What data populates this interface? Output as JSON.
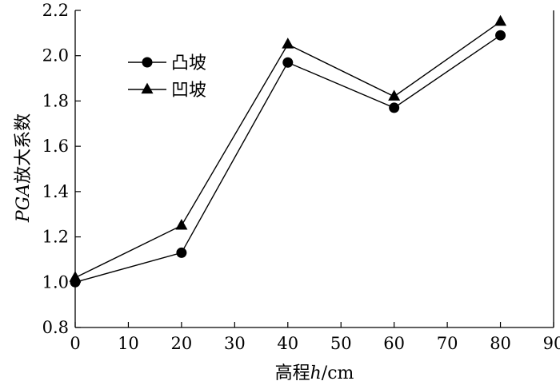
{
  "chart_data": {
    "type": "line",
    "xlabel": {
      "prefix": "高程",
      "var": "h",
      "unit": "/cm"
    },
    "ylabel": {
      "var": "PGA",
      "text": "放大系数"
    },
    "xlim": [
      0,
      90
    ],
    "ylim": [
      0.8,
      2.2
    ],
    "x_ticks": [
      "0",
      "10",
      "20",
      "30",
      "40",
      "50",
      "60",
      "70",
      "80",
      "90"
    ],
    "y_ticks": [
      "0.8",
      "1.0",
      "1.2",
      "1.4",
      "1.6",
      "1.8",
      "2.0",
      "2.2"
    ],
    "x": [
      0,
      20,
      40,
      60,
      80
    ],
    "series": [
      {
        "name": "凸坡",
        "marker": "circle",
        "values": [
          1.0,
          1.13,
          1.97,
          1.77,
          2.09
        ]
      },
      {
        "name": "凹坡",
        "marker": "triangle",
        "values": [
          1.02,
          1.25,
          2.05,
          1.82,
          2.15
        ]
      }
    ],
    "grid": false,
    "legend_position": "top-left",
    "colors": {
      "line": "#000000",
      "marker": "#000000"
    }
  }
}
